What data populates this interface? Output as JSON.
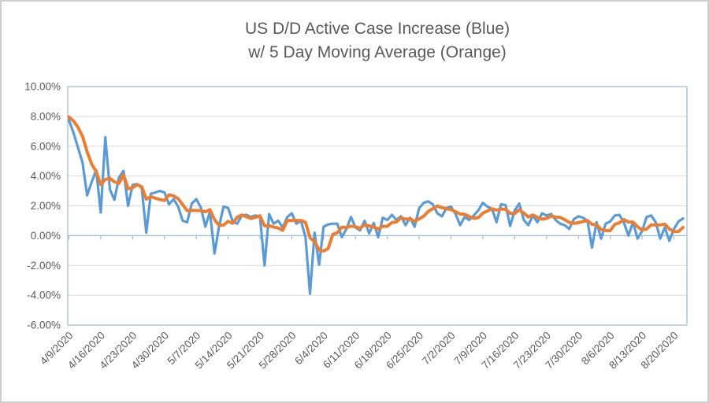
{
  "chart_data": {
    "type": "line",
    "title": "US D/D Active Case Increase (Blue)",
    "subtitle": "w/ 5 Day Moving Average (Orange)",
    "xlabel": "",
    "ylabel": "",
    "unit": "percent",
    "frequency": "daily",
    "start_date": "4/9/2020",
    "end_date": "8/22/2020",
    "ylim": [
      -6,
      10
    ],
    "grid": "horizontal",
    "legend_position": "none (series identified in title)",
    "colors": {
      "daily": "#5B9BD5",
      "moving_average": "#ED7D31",
      "gridline": "#D9D9D9",
      "axis": "#9DB9CE",
      "text": "#595959"
    },
    "y_ticks": [
      {
        "value": 10,
        "label": "10.00%"
      },
      {
        "value": 8,
        "label": "8.00%"
      },
      {
        "value": 6,
        "label": "6.00%"
      },
      {
        "value": 4,
        "label": "4.00%"
      },
      {
        "value": 2,
        "label": "2.00%"
      },
      {
        "value": 0,
        "label": "0.00%"
      },
      {
        "value": -2,
        "label": "-2.00%"
      },
      {
        "value": -4,
        "label": "-4.00%"
      },
      {
        "value": -6,
        "label": "-6.00%"
      }
    ],
    "x_tick_interval_days": 7,
    "x_tick_labels": [
      "4/9/2020",
      "4/16/2020",
      "4/23/2020",
      "4/30/2020",
      "5/7/2020",
      "5/14/2020",
      "5/21/2020",
      "5/28/2020",
      "6/4/2020",
      "6/11/2020",
      "6/18/2020",
      "6/25/2020",
      "7/2/2020",
      "7/9/2020",
      "7/16/2020",
      "7/23/2020",
      "7/30/2020",
      "8/6/2020",
      "8/13/2020",
      "8/20/2020"
    ],
    "series": [
      {
        "id": "daily",
        "name": "US D/D Active Case Increase",
        "color_key": "daily",
        "stroke_width": 3.2,
        "values": [
          7.75,
          6.9,
          5.9,
          4.9,
          2.7,
          3.6,
          4.4,
          1.55,
          6.6,
          3.1,
          2.4,
          3.9,
          4.35,
          2.0,
          3.4,
          3.45,
          3.2,
          0.2,
          2.8,
          2.9,
          3.0,
          2.9,
          2.1,
          2.45,
          1.95,
          1.0,
          0.9,
          2.15,
          2.45,
          1.9,
          0.6,
          1.6,
          -1.2,
          0.6,
          1.95,
          1.85,
          0.95,
          0.8,
          1.35,
          1.4,
          1.25,
          1.35,
          1.3,
          -2.0,
          1.45,
          0.8,
          1.0,
          0.55,
          1.25,
          1.5,
          0.8,
          1.0,
          -0.1,
          -3.9,
          0.2,
          -1.95,
          0.6,
          0.75,
          0.8,
          0.8,
          -0.1,
          0.45,
          1.25,
          0.55,
          0.35,
          1.0,
          0.15,
          0.85,
          -0.1,
          1.2,
          1.05,
          1.4,
          1.05,
          1.3,
          0.7,
          1.2,
          0.6,
          1.85,
          2.2,
          2.3,
          2.1,
          1.5,
          1.3,
          1.85,
          1.95,
          1.45,
          0.7,
          1.25,
          1.05,
          1.35,
          1.7,
          2.2,
          1.95,
          1.8,
          0.9,
          2.1,
          2.05,
          0.65,
          1.7,
          2.15,
          1.05,
          0.7,
          1.35,
          0.9,
          1.5,
          1.35,
          1.45,
          1.05,
          0.8,
          0.7,
          0.45,
          1.1,
          1.3,
          1.2,
          1.0,
          -0.8,
          0.9,
          -0.2,
          0.8,
          0.95,
          1.35,
          1.4,
          0.9,
          0.0,
          0.9,
          -0.2,
          0.3,
          1.25,
          1.35,
          0.9,
          -0.2,
          0.55,
          -0.35,
          0.45,
          0.95,
          1.15
        ]
      },
      {
        "id": "ma5",
        "name": "5 Day Moving Average",
        "color_key": "moving_average",
        "stroke_width": 4,
        "derived": {
          "type": "trailing_moving_average",
          "window": 5,
          "source": "daily",
          "seed_prior_values": [
            8.2,
            8.05,
            7.95,
            7.85
          ]
        }
      }
    ]
  }
}
